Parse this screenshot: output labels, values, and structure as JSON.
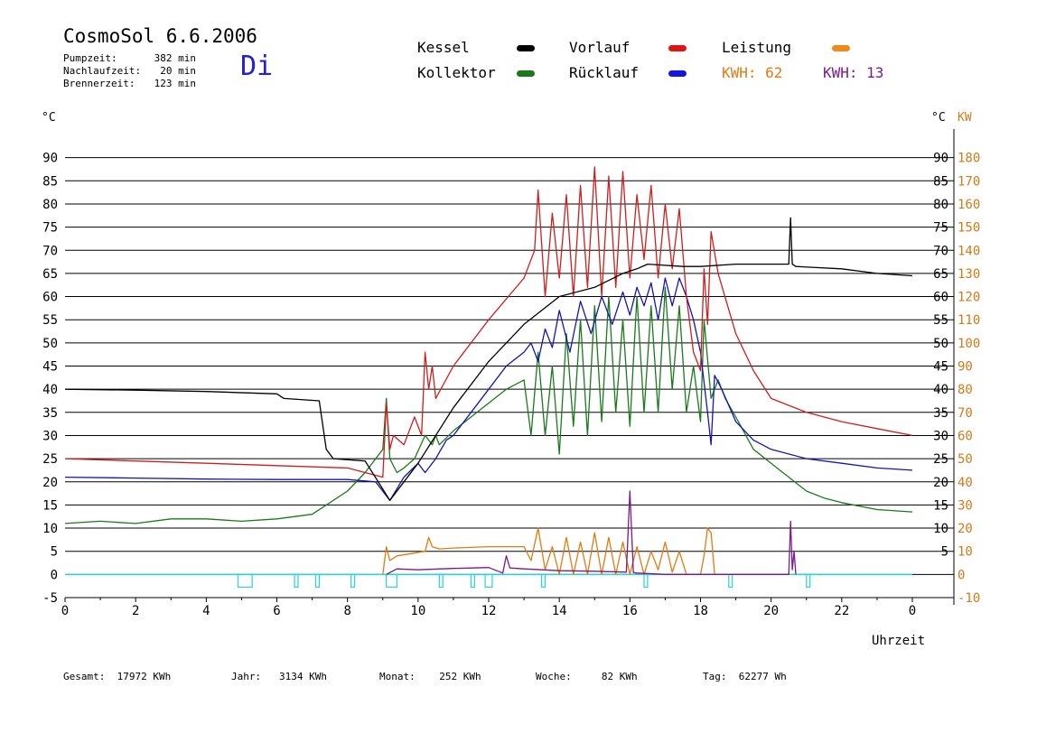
{
  "header": {
    "title": "CosmoSol 6.6.2006",
    "stats": [
      {
        "label": "Pumpzeit:",
        "value": "382 min"
      },
      {
        "label": "Nachlaufzeit:",
        "value": "20 min"
      },
      {
        "label": "Brennerzeit:",
        "value": "123 min"
      }
    ],
    "weekday": "Di"
  },
  "legend": {
    "kessel": "Kessel",
    "kollektor": "Kollektor",
    "vorlauf": "Vorlauf",
    "ruecklauf": "Rücklauf",
    "leistung": "Leistung",
    "kwh1_label": "KWH:",
    "kwh1_value": "62",
    "kwh2_label": "KWH:",
    "kwh2_value": "13"
  },
  "colors": {
    "kessel": "#000000",
    "kollektor": "#1a7a1a",
    "vorlauf": "#cc1f1f",
    "ruecklauf": "#1515b0",
    "leistung": "#e07b10",
    "kwh2": "#7a1a8c",
    "pump": "#27d3dd",
    "axis_kw": "#d07a18"
  },
  "footer": [
    {
      "label": "Gesamt:",
      "value": "17972 KWh"
    },
    {
      "label": "Jahr:",
      "value": "3134 KWh"
    },
    {
      "label": "Monat:",
      "value": "252 KWh"
    },
    {
      "label": "Woche:",
      "value": "82 KWh"
    },
    {
      "label": "Tag:",
      "value": "62277 Wh"
    }
  ],
  "chart_data": {
    "type": "line",
    "xlabel": "Uhrzeit",
    "ylabel_left": "°C",
    "ylabel_right_1": "°C",
    "ylabel_right_2": "KW",
    "xlim": [
      0,
      24
    ],
    "ylim": [
      -5,
      95
    ],
    "ylim_kw": [
      -10,
      190
    ],
    "grid": true,
    "x_ticks": [
      "0",
      "2",
      "4",
      "6",
      "8",
      "10",
      "12",
      "14",
      "16",
      "18",
      "20",
      "22",
      "0"
    ],
    "y_ticks_left": [
      "-5",
      "0",
      "5",
      "10",
      "15",
      "20",
      "25",
      "30",
      "35",
      "40",
      "45",
      "50",
      "55",
      "60",
      "65",
      "70",
      "75",
      "80",
      "85",
      "90"
    ],
    "y_ticks_right": [
      "5",
      "10",
      "15",
      "20",
      "25",
      "30",
      "35",
      "40",
      "45",
      "50",
      "55",
      "60",
      "65",
      "70",
      "75",
      "80",
      "85",
      "90"
    ],
    "y_ticks_kw": [
      "-10",
      "0",
      "10",
      "20",
      "30",
      "40",
      "50",
      "60",
      "70",
      "80",
      "90",
      "100",
      "110",
      "120",
      "130",
      "140",
      "150",
      "160",
      "170",
      "180"
    ],
    "series": [
      {
        "name": "Kessel",
        "color": "#000000",
        "x": [
          0,
          2,
          4,
          6,
          6.2,
          7.2,
          7.4,
          7.6,
          8.5,
          9.2,
          10,
          11,
          12,
          13,
          14,
          15,
          15.8,
          16.2,
          16.5,
          17.5,
          18,
          19,
          20,
          20.5,
          20.55,
          20.6,
          20.7,
          22,
          23,
          24
        ],
        "y": [
          40,
          39.8,
          39.5,
          39,
          38,
          37.5,
          27,
          25,
          24.5,
          16,
          24,
          36,
          46,
          54,
          60,
          62,
          65,
          66,
          67,
          66.5,
          66.5,
          67,
          67,
          67,
          77,
          67,
          66.5,
          66,
          65,
          64.5
        ]
      },
      {
        "name": "Kollektor",
        "color": "#1a7a1a",
        "x": [
          0,
          1,
          2,
          3,
          4,
          5,
          6,
          7,
          8,
          8.5,
          9.0,
          9.1,
          9.2,
          9.4,
          9.6,
          9.9,
          10.2,
          10.4,
          10.5,
          10.6,
          11,
          11.5,
          12,
          12.5,
          13,
          13.2,
          13.4,
          13.6,
          13.8,
          14,
          14.2,
          14.4,
          14.6,
          14.8,
          15,
          15.2,
          15.4,
          15.6,
          15.8,
          16,
          16.2,
          16.4,
          16.6,
          16.8,
          17,
          17.2,
          17.4,
          17.6,
          17.8,
          18,
          18.1,
          18.3,
          18.5,
          18.7,
          19,
          19.5,
          20,
          20.5,
          21,
          21.5,
          22,
          23,
          24
        ],
        "y": [
          11,
          11.5,
          11,
          12,
          12,
          11.5,
          12,
          13,
          18,
          22,
          27,
          38,
          25,
          22,
          23,
          25,
          30,
          28,
          30,
          28,
          31,
          34,
          37,
          40,
          42,
          30,
          48,
          30,
          45,
          26,
          52,
          32,
          55,
          30,
          58,
          33,
          60,
          35,
          55,
          32,
          60,
          35,
          58,
          35,
          62,
          40,
          58,
          35,
          45,
          33,
          55,
          38,
          42,
          38,
          34,
          27,
          24,
          21,
          18,
          16.5,
          15.5,
          14,
          13.5
        ]
      },
      {
        "name": "Vorlauf",
        "color": "#cc1f1f",
        "x": [
          0,
          2,
          4,
          6,
          8,
          9.0,
          9.1,
          9.2,
          9.3,
          9.6,
          9.9,
          10.1,
          10.2,
          10.3,
          10.4,
          10.5,
          11,
          12,
          13,
          13.3,
          13.4,
          13.6,
          13.8,
          14.0,
          14.2,
          14.4,
          14.6,
          14.8,
          15.0,
          15.2,
          15.4,
          15.6,
          15.8,
          16.0,
          16.2,
          16.4,
          16.6,
          16.8,
          17.0,
          17.2,
          17.4,
          17.6,
          17.8,
          18.0,
          18.1,
          18.2,
          18.3,
          18.5,
          19,
          19.5,
          20,
          21,
          22,
          23,
          24
        ],
        "y": [
          25,
          24.5,
          24,
          23.5,
          23,
          21,
          37,
          27,
          30,
          28,
          34,
          30,
          48,
          40,
          45,
          38,
          45,
          55,
          64,
          70,
          83,
          60,
          78,
          64,
          82,
          60,
          84,
          62,
          88,
          60,
          86,
          62,
          87,
          64,
          82,
          68,
          84,
          64,
          80,
          66,
          79,
          60,
          48,
          44,
          66,
          54,
          74,
          65,
          52,
          44,
          38,
          35,
          33,
          31.5,
          30
        ]
      },
      {
        "name": "Rücklauf",
        "color": "#1515b0",
        "x": [
          0,
          2,
          4,
          6,
          8,
          8.8,
          9.2,
          9.6,
          10,
          10.2,
          10.5,
          10.8,
          11,
          11.5,
          12,
          12.5,
          13,
          13.2,
          13.4,
          13.6,
          13.8,
          14,
          14.3,
          14.6,
          14.9,
          15.2,
          15.5,
          15.8,
          16,
          16.2,
          16.4,
          16.6,
          16.8,
          17,
          17.2,
          17.4,
          17.6,
          17.8,
          18,
          18.2,
          18.3,
          18.4,
          18.6,
          19,
          19.5,
          20,
          21,
          22,
          23,
          24
        ],
        "y": [
          21,
          20.8,
          20.6,
          20.5,
          20.5,
          20,
          16,
          21,
          24,
          22,
          25,
          29,
          30,
          35,
          40,
          45,
          48,
          50,
          46,
          53,
          49,
          57,
          48,
          59,
          52,
          60,
          54,
          61,
          56,
          62,
          58,
          63,
          55,
          64,
          58,
          64,
          60,
          55,
          48,
          35,
          28,
          43,
          40,
          33,
          29,
          27,
          25,
          24,
          23,
          22.5
        ]
      },
      {
        "name": "Leistung",
        "color": "#e07b10",
        "x": [
          9.0,
          9.1,
          9.2,
          9.4,
          9.8,
          10.2,
          10.3,
          10.4,
          10.6,
          11,
          12,
          12.5,
          13.0,
          13.2,
          13.4,
          13.6,
          13.8,
          14.0,
          14.2,
          14.4,
          14.6,
          14.8,
          15.0,
          15.2,
          15.4,
          15.6,
          15.8,
          16.0,
          16.2,
          16.4,
          16.6,
          16.8,
          17.0,
          17.2,
          17.4,
          17.6,
          17.8,
          18.0,
          18.1,
          18.2,
          18.3,
          18.4
        ],
        "y": [
          0,
          6,
          3,
          4,
          4.5,
          5,
          8,
          6,
          5.5,
          5.7,
          6,
          6,
          6,
          3,
          10,
          1,
          6,
          0,
          8,
          0,
          7,
          0,
          9,
          0,
          8,
          0,
          7,
          0,
          6,
          0,
          5,
          1,
          7,
          0.5,
          5,
          0,
          0,
          0,
          4,
          10,
          9,
          0
        ]
      },
      {
        "name": "KWH 13",
        "color": "#7a1a8c",
        "x": [
          9.1,
          9.4,
          10,
          11,
          12,
          12.4,
          12.5,
          12.6,
          13,
          14,
          15,
          15.9,
          16.0,
          16.1,
          16.2,
          17,
          20.5,
          20.55,
          20.6,
          20.65,
          20.7
        ],
        "y": [
          0,
          1.2,
          1,
          1.3,
          1.5,
          0.3,
          4,
          1.4,
          1.2,
          0.8,
          0.7,
          0.5,
          18,
          0.4,
          0.3,
          0,
          0,
          11.5,
          1,
          5,
          0
        ]
      }
    ],
    "pump_on_intervals": [
      [
        4.9,
        5.3
      ],
      [
        6.5,
        6.6
      ],
      [
        7.1,
        7.2
      ],
      [
        8.1,
        8.2
      ],
      [
        9.1,
        9.4
      ],
      [
        10.6,
        10.7
      ],
      [
        11.5,
        11.6
      ],
      [
        11.9,
        12.1
      ],
      [
        13.5,
        13.6
      ],
      [
        16.4,
        16.5
      ],
      [
        18.8,
        18.9
      ],
      [
        21.0,
        21.1
      ]
    ]
  }
}
